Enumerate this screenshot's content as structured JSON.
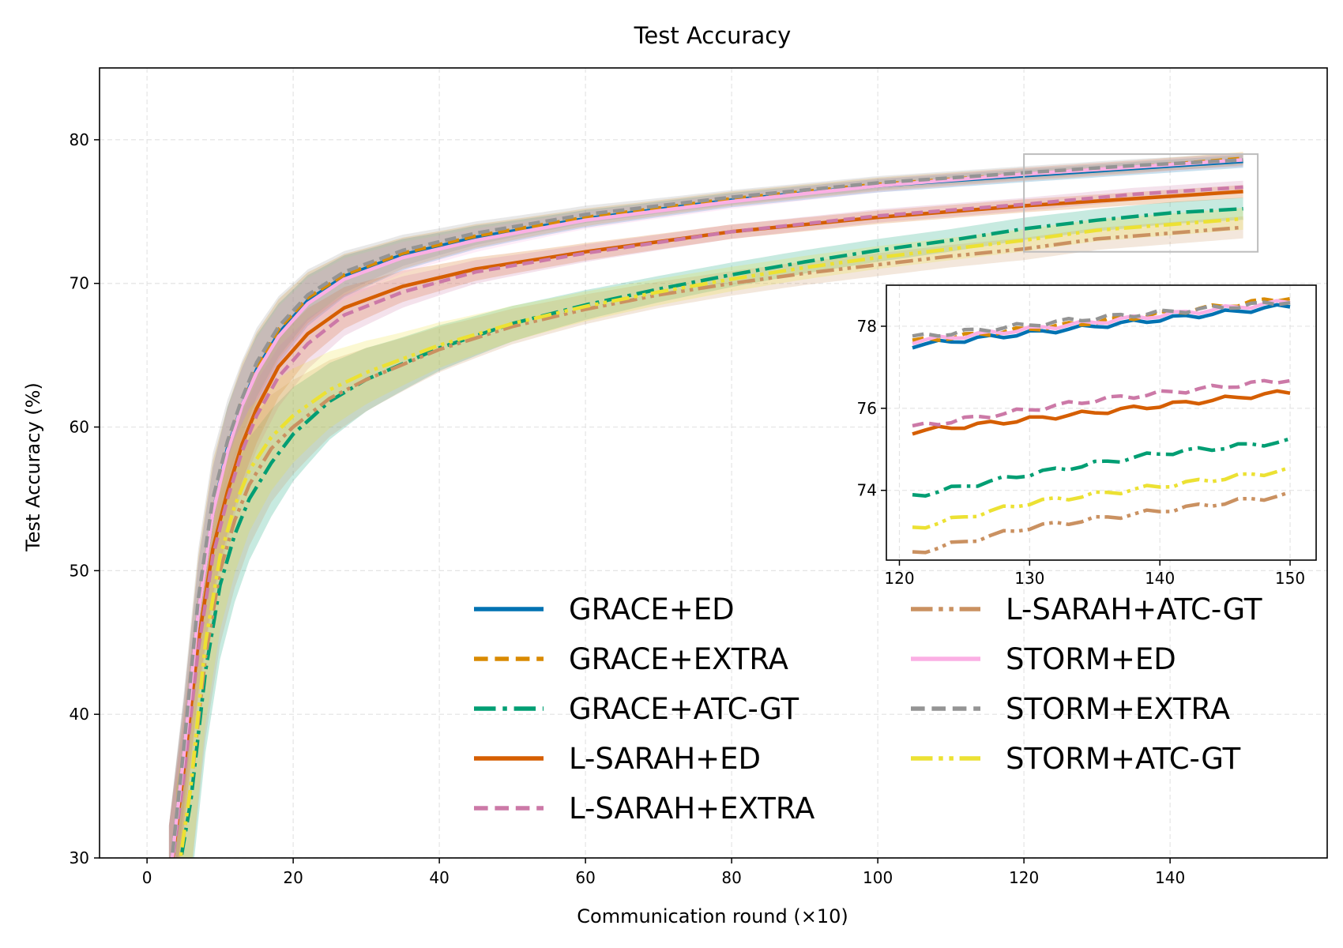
{
  "chart_data": {
    "type": "line",
    "title": "Test Accuracy",
    "xlabel": "Communication round (×10)",
    "ylabel": "Test Accuracy (%)",
    "xlim": [
      -6.5,
      161.5
    ],
    "ylim": [
      30,
      85
    ],
    "xticks": [
      0,
      20,
      40,
      60,
      80,
      100,
      120,
      140
    ],
    "yticks": [
      30,
      40,
      50,
      60,
      70,
      80
    ],
    "grid": true,
    "shaded_bands": true,
    "legend_position": "lower-right",
    "series": [
      {
        "name": "GRACE+ED",
        "color": "#0072b2",
        "dash": "solid",
        "x": [
          3,
          5,
          7,
          9,
          11,
          13,
          15,
          18,
          22,
          27,
          35,
          45,
          60,
          80,
          100,
          120,
          135,
          150
        ],
        "y": [
          28,
          37,
          47,
          54,
          58.5,
          61.5,
          64,
          66.5,
          68.8,
          70.5,
          72,
          73.2,
          74.5,
          75.8,
          76.8,
          77.5,
          78,
          78.5
        ]
      },
      {
        "name": "GRACE+EXTRA",
        "color": "#d98a00",
        "dash": "dashed",
        "x": [
          3,
          5,
          7,
          9,
          11,
          13,
          15,
          18,
          22,
          27,
          35,
          45,
          60,
          80,
          100,
          120,
          135,
          150
        ],
        "y": [
          28,
          37,
          47.5,
          54.5,
          58.5,
          61.8,
          64.2,
          66.8,
          69,
          70.6,
          72.1,
          73.3,
          74.6,
          75.9,
          76.9,
          77.6,
          78.1,
          78.7
        ]
      },
      {
        "name": "GRACE+ATC-GT",
        "color": "#009e73",
        "dash": "dashdot",
        "x": [
          4,
          6,
          8,
          10,
          12,
          14,
          17,
          20,
          25,
          30,
          40,
          50,
          60,
          70,
          80,
          90,
          100,
          110,
          120,
          130,
          140,
          150
        ],
        "y": [
          28,
          34,
          43,
          49,
          52.5,
          55,
          57.5,
          59.5,
          61.8,
          63.3,
          65.5,
          67.2,
          68.5,
          69.6,
          70.6,
          71.5,
          72.3,
          73,
          73.8,
          74.4,
          74.9,
          75.2
        ]
      },
      {
        "name": "L-SARAH+ED",
        "color": "#d55e00",
        "dash": "solid",
        "x": [
          3,
          5,
          7,
          9,
          11,
          13,
          15,
          18,
          22,
          27,
          35,
          45,
          60,
          80,
          100,
          120,
          135,
          150
        ],
        "y": [
          28,
          36,
          45,
          51.5,
          55.5,
          58.8,
          61.3,
          64.2,
          66.5,
          68.3,
          69.8,
          71,
          72.2,
          73.6,
          74.6,
          75.4,
          75.9,
          76.4
        ]
      },
      {
        "name": "L-SARAH+EXTRA",
        "color": "#cc79a7",
        "dash": "dashed",
        "x": [
          3,
          5,
          7,
          9,
          11,
          13,
          15,
          18,
          22,
          27,
          35,
          45,
          60,
          80,
          100,
          120,
          135,
          150
        ],
        "y": [
          28,
          35.5,
          44.5,
          51,
          55,
          58.3,
          60.8,
          63.5,
          65.8,
          67.8,
          69.4,
          70.8,
          72.1,
          73.6,
          74.7,
          75.5,
          76.2,
          76.7
        ]
      },
      {
        "name": "L-SARAH+ATC-GT",
        "color": "#ca9161",
        "dash": "dashdotdot",
        "x": [
          4,
          6,
          8,
          10,
          12,
          14,
          17,
          20,
          25,
          30,
          40,
          50,
          60,
          70,
          80,
          90,
          100,
          110,
          120,
          130,
          140,
          150
        ],
        "y": [
          28,
          35,
          44,
          50,
          53.5,
          56,
          58.5,
          60,
          62,
          63.3,
          65.4,
          67,
          68.2,
          69.2,
          70,
          70.7,
          71.3,
          71.9,
          72.4,
          73.1,
          73.5,
          73.9
        ]
      },
      {
        "name": "STORM+ED",
        "color": "#fbafe4",
        "dash": "solid",
        "x": [
          3,
          5,
          7,
          9,
          11,
          13,
          15,
          18,
          22,
          27,
          35,
          45,
          60,
          80,
          100,
          120,
          135,
          150
        ],
        "y": [
          28,
          37,
          47,
          54,
          58.3,
          61.5,
          63.8,
          66.3,
          68.6,
          70.3,
          71.8,
          73,
          74.4,
          75.7,
          76.8,
          77.6,
          78.1,
          78.6
        ]
      },
      {
        "name": "STORM+EXTRA",
        "color": "#949494",
        "dash": "dashed",
        "x": [
          3,
          5,
          7,
          9,
          11,
          13,
          15,
          18,
          22,
          27,
          35,
          45,
          60,
          80,
          100,
          120,
          135,
          150
        ],
        "y": [
          28,
          37.5,
          48,
          55,
          59,
          62,
          64.5,
          67,
          69.2,
          70.8,
          72.3,
          73.5,
          74.8,
          76,
          77,
          77.7,
          78.2,
          78.6
        ]
      },
      {
        "name": "STORM+ATC-GT",
        "color": "#ece133",
        "dash": "dashdotdot",
        "x": [
          4,
          6,
          8,
          10,
          12,
          14,
          17,
          20,
          25,
          30,
          40,
          50,
          60,
          70,
          80,
          90,
          100,
          110,
          120,
          130,
          140,
          150
        ],
        "y": [
          28,
          35,
          45,
          51,
          54.5,
          57,
          59.3,
          60.8,
          62.6,
          63.8,
          65.7,
          67.2,
          68.4,
          69.4,
          70.3,
          71.1,
          71.8,
          72.4,
          73,
          73.7,
          74.1,
          74.5
        ]
      }
    ],
    "inset": {
      "xlim": [
        119,
        152
      ],
      "ylim": [
        72.3,
        79
      ],
      "xticks": [
        120,
        130,
        140,
        150
      ],
      "yticks": [
        74,
        76,
        78
      ],
      "source_range": {
        "x": [
          120,
          150
        ],
        "y": [
          72.2,
          79
        ]
      }
    }
  }
}
